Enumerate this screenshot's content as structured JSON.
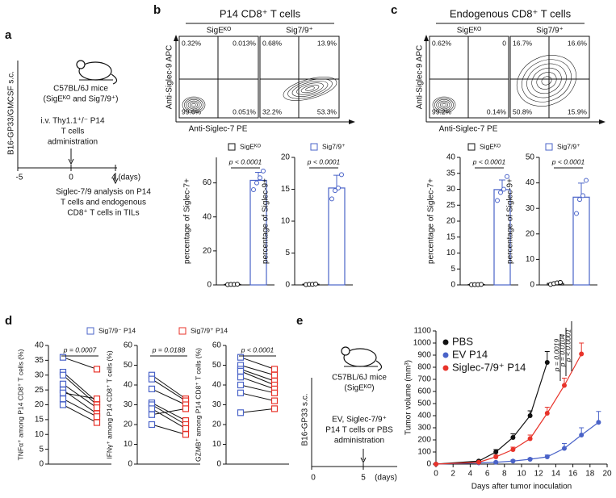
{
  "panel_labels": [
    "a",
    "b",
    "c",
    "d",
    "e"
  ],
  "panel_a": {
    "mouse": [
      "C57BL/6J mice",
      "(SigEᴷᴼ and Sig7/9⁺)"
    ],
    "injection": "B16-GP33/GMCSF s.c.",
    "treatment": [
      "i.v. Thy1.1⁺/⁻ P14",
      "T cells",
      "administration"
    ],
    "timeline": [
      "-5",
      "0",
      "4 (days)"
    ],
    "analysis": [
      "Siglec-7/9 analysis on P14",
      "T cells and endogenous",
      "CD8⁺ T cells in TILs"
    ]
  },
  "panel_e": {
    "mouse": [
      "C57BL/6J mice",
      "(SigEᴷᴼ)"
    ],
    "injection": "B16-GP33 s.c.",
    "treatment": [
      "EV, Siglec-7/9⁺",
      "P14 T cells or PBS",
      "administration"
    ],
    "timeline": [
      "0",
      "5",
      "(days)"
    ]
  },
  "flow": [
    {
      "title": "P14 CD8⁺ T cells",
      "y_label": "Anti-Siglec-9 APC",
      "x_label": "Anti-Siglec-7 PE",
      "plots": [
        {
          "label": "SigEᴷᴼ",
          "quadrants": [
            "0.32%",
            "0.013%",
            "99.6%",
            "0.051%"
          ]
        },
        {
          "label": "Sig7/9⁺",
          "quadrants": [
            "0.68%",
            "13.9%",
            "32.2%",
            "53.3%"
          ]
        }
      ]
    },
    {
      "title": "Endogenous CD8⁺ T cells",
      "y_label": "Anti-Siglec-9 APC",
      "x_label": "Anti-Siglec-7 PE",
      "plots": [
        {
          "label": "SigEᴷᴼ",
          "quadrants": [
            "0.62%",
            "0",
            "99.2%",
            "0.14%"
          ]
        },
        {
          "label": "Sig7/9⁺",
          "quadrants": [
            "16.7%",
            "16.6%",
            "50.8%",
            "15.9%"
          ]
        }
      ]
    }
  ],
  "chart_data": [
    {
      "type": "bar",
      "series": [
        {
          "name": "SigEᴷᴼ",
          "color": "#111111"
        },
        {
          "name": "Sig7/9⁺",
          "color": "#4a63c8"
        }
      ],
      "subplots": [
        {
          "y_label": "percentage of Siglec-7+",
          "ylim": [
            0,
            75
          ],
          "yticks": [
            0,
            20,
            40,
            60
          ],
          "p_label": "p < 0.0001",
          "values": [
            0.3,
            61.5
          ],
          "errors": [
            0.1,
            4.7
          ],
          "points": [
            [
              0.2,
              0.3,
              0.3,
              0.4
            ],
            [
              56,
              60,
              63,
              67
            ]
          ]
        },
        {
          "y_label": "percentage of Siglec-9+",
          "ylim": [
            0,
            20
          ],
          "yticks": [
            0,
            5,
            10,
            15,
            20
          ],
          "p_label": "p < 0.0001",
          "values": [
            0.1,
            15.2
          ],
          "errors": [
            0.05,
            2
          ],
          "points": [
            [
              0.05,
              0.1,
              0.1,
              0.15
            ],
            [
              13.5,
              14.8,
              15.2,
              17.3
            ]
          ]
        }
      ]
    },
    {
      "type": "bar",
      "series": [
        {
          "name": "SigEᴷᴼ",
          "color": "#111111"
        },
        {
          "name": "Sig7/9⁺",
          "color": "#4a63c8"
        }
      ],
      "subplots": [
        {
          "y_label": "percentage of Siglec-7+",
          "ylim": [
            0,
            40
          ],
          "yticks": [
            0,
            5,
            10,
            15,
            20,
            25,
            30,
            35,
            40
          ],
          "p_label": "p < 0.0001",
          "values": [
            0.1,
            29.9
          ],
          "errors": [
            0.05,
            3
          ],
          "points": [
            [
              0.05,
              0.1,
              0.1,
              0.15
            ],
            [
              26.5,
              29,
              30,
              34
            ]
          ]
        },
        {
          "y_label": "percentage of Siglec-9+",
          "ylim": [
            0,
            50
          ],
          "yticks": [
            0,
            10,
            20,
            30,
            40,
            50
          ],
          "p_label": "p < 0.0001",
          "values": [
            0.6,
            34.4
          ],
          "errors": [
            0.3,
            5.5
          ],
          "points": [
            [
              0.2,
              0.5,
              0.8,
              1.0
            ],
            [
              28,
              33.5,
              35,
              41
            ]
          ]
        }
      ]
    },
    {
      "type": "paired",
      "series": [
        {
          "name": "Sig7/9⁻ P14",
          "color": "#4a63c8"
        },
        {
          "name": "Sig7/9⁺ P14",
          "color": "#e8332a"
        }
      ],
      "subplots": [
        {
          "y_label": "TNFα⁺ among P14 CD8⁺ T cells (%)",
          "ylim": [
            0,
            40
          ],
          "yticks": [
            0,
            5,
            10,
            15,
            20,
            25,
            30,
            35,
            40
          ],
          "p_label": "p = 0.0007",
          "values": [
            [
              36,
              31,
              30,
              27,
              25,
              24,
              22,
              20
            ],
            [
              32,
              21,
              20,
              19,
              17,
              22,
              16,
              14
            ]
          ]
        },
        {
          "y_label": "IFNγ⁺ among P14 CD8⁺ T cells (%)",
          "ylim": [
            0,
            60
          ],
          "yticks": [
            0,
            10,
            20,
            30,
            40,
            50,
            60
          ],
          "p_label": "p = 0.0188",
          "values": [
            [
              45,
              43,
              38,
              31,
              30,
              28,
              25,
              20
            ],
            [
              33,
              32,
              30,
              22,
              20,
              18,
              28,
              15
            ]
          ]
        },
        {
          "y_label": "GZMB⁺ among P14 CD8⁺ T cells (%)",
          "ylim": [
            0,
            60
          ],
          "yticks": [
            0,
            10,
            20,
            30,
            40,
            50,
            60
          ],
          "p_label": "p < 0.0001",
          "values": [
            [
              54,
              50,
              48,
              47,
              44,
              40,
              36,
              26
            ],
            [
              48,
              45,
              42,
              40,
              38,
              36,
              32,
              28
            ]
          ]
        }
      ]
    },
    {
      "type": "line",
      "y_label": "Tumor volume (mm³)",
      "x_label": "Days after tumor inoculation",
      "xlim": [
        0,
        20
      ],
      "xticks": [
        0,
        2,
        4,
        6,
        8,
        10,
        12,
        14,
        16,
        18,
        20
      ],
      "ylim": [
        0,
        1100
      ],
      "yticks": [
        0,
        100,
        200,
        300,
        400,
        500,
        600,
        700,
        800,
        900,
        1000,
        1100
      ],
      "p_labels": [
        "p < 0.0001",
        "p = 0.0104",
        "p = 0.0019"
      ],
      "series": [
        {
          "name": "PBS",
          "color": "#111111",
          "x": [
            0,
            5,
            7,
            9,
            11,
            13
          ],
          "values": [
            0,
            25,
            100,
            220,
            400,
            840
          ],
          "errors": [
            0,
            5,
            20,
            30,
            40,
            90
          ]
        },
        {
          "name": "EV P14",
          "color": "#4a63c8",
          "x": [
            0,
            5,
            7,
            9,
            11,
            13,
            15,
            17,
            19
          ],
          "values": [
            0,
            10,
            15,
            25,
            40,
            60,
            130,
            240,
            345
          ],
          "errors": [
            0,
            3,
            5,
            8,
            10,
            15,
            40,
            60,
            90
          ]
        },
        {
          "name": "Siglec-7/9⁺ P14",
          "color": "#e8332a",
          "x": [
            0,
            5,
            7,
            9,
            11,
            13,
            15,
            17
          ],
          "values": [
            0,
            15,
            60,
            120,
            210,
            420,
            650,
            910
          ],
          "errors": [
            0,
            4,
            15,
            20,
            30,
            50,
            60,
            90
          ]
        }
      ]
    }
  ]
}
